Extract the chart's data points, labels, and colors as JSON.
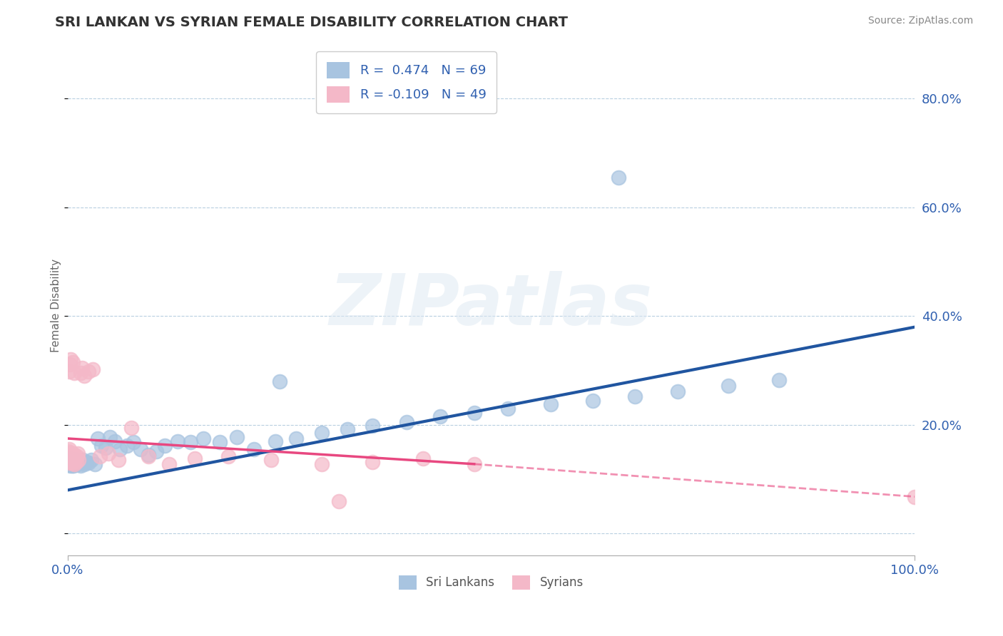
{
  "title": "SRI LANKAN VS SYRIAN FEMALE DISABILITY CORRELATION CHART",
  "source": "Source: ZipAtlas.com",
  "ylabel": "Female Disability",
  "xlim": [
    0.0,
    1.0
  ],
  "ylim": [
    -0.04,
    0.88
  ],
  "x_tick_left": "0.0%",
  "x_tick_right": "100.0%",
  "y_ticks": [
    0.0,
    0.2,
    0.4,
    0.6,
    0.8
  ],
  "y_tick_labels": [
    "",
    "20.0%",
    "40.0%",
    "60.0%",
    "80.0%"
  ],
  "sri_lankan_color": "#a8c4e0",
  "syrian_color": "#f4b8c8",
  "sri_lankan_line_color": "#2055a0",
  "syrian_line_color": "#e84880",
  "sri_lankan_R": 0.474,
  "sri_lankan_N": 69,
  "syrian_R": -0.109,
  "syrian_N": 49,
  "watermark_text": "ZIPatlas",
  "background_color": "#ffffff",
  "sri_lankans_x": [
    0.001,
    0.001,
    0.002,
    0.002,
    0.003,
    0.003,
    0.003,
    0.004,
    0.004,
    0.005,
    0.005,
    0.005,
    0.006,
    0.006,
    0.007,
    0.007,
    0.008,
    0.008,
    0.009,
    0.009,
    0.01,
    0.01,
    0.011,
    0.012,
    0.013,
    0.014,
    0.015,
    0.016,
    0.018,
    0.02,
    0.022,
    0.025,
    0.028,
    0.032,
    0.036,
    0.04,
    0.045,
    0.05,
    0.056,
    0.062,
    0.07,
    0.078,
    0.086,
    0.095,
    0.105,
    0.115,
    0.13,
    0.145,
    0.16,
    0.18,
    0.2,
    0.22,
    0.245,
    0.27,
    0.3,
    0.33,
    0.36,
    0.4,
    0.44,
    0.48,
    0.52,
    0.57,
    0.62,
    0.67,
    0.72,
    0.78,
    0.84,
    0.25,
    0.65
  ],
  "sri_lankans_y": [
    0.13,
    0.135,
    0.132,
    0.128,
    0.138,
    0.125,
    0.13,
    0.135,
    0.128,
    0.132,
    0.13,
    0.125,
    0.128,
    0.135,
    0.13,
    0.125,
    0.132,
    0.128,
    0.13,
    0.135,
    0.128,
    0.132,
    0.135,
    0.13,
    0.128,
    0.132,
    0.125,
    0.13,
    0.135,
    0.128,
    0.132,
    0.13,
    0.135,
    0.128,
    0.175,
    0.162,
    0.158,
    0.178,
    0.17,
    0.155,
    0.162,
    0.168,
    0.155,
    0.145,
    0.152,
    0.162,
    0.17,
    0.168,
    0.175,
    0.168,
    0.178,
    0.155,
    0.17,
    0.175,
    0.185,
    0.192,
    0.198,
    0.205,
    0.215,
    0.222,
    0.23,
    0.238,
    0.245,
    0.252,
    0.262,
    0.272,
    0.282,
    0.28,
    0.655
  ],
  "syrians_x": [
    0.001,
    0.001,
    0.001,
    0.002,
    0.002,
    0.002,
    0.003,
    0.003,
    0.004,
    0.004,
    0.005,
    0.005,
    0.005,
    0.006,
    0.006,
    0.007,
    0.007,
    0.008,
    0.008,
    0.009,
    0.01,
    0.011,
    0.012,
    0.013,
    0.015,
    0.017,
    0.02,
    0.025,
    0.03,
    0.038,
    0.048,
    0.06,
    0.075,
    0.095,
    0.12,
    0.15,
    0.19,
    0.24,
    0.3,
    0.36,
    0.42,
    0.48,
    0.002,
    0.003,
    0.004,
    0.006,
    0.008,
    0.32,
    1.0
  ],
  "syrians_y": [
    0.148,
    0.152,
    0.142,
    0.148,
    0.155,
    0.13,
    0.138,
    0.145,
    0.142,
    0.148,
    0.132,
    0.138,
    0.145,
    0.13,
    0.148,
    0.135,
    0.142,
    0.128,
    0.145,
    0.138,
    0.132,
    0.142,
    0.148,
    0.135,
    0.295,
    0.305,
    0.29,
    0.298,
    0.302,
    0.142,
    0.148,
    0.135,
    0.195,
    0.142,
    0.128,
    0.138,
    0.142,
    0.135,
    0.128,
    0.132,
    0.138,
    0.128,
    0.298,
    0.312,
    0.32,
    0.315,
    0.295,
    0.06,
    0.068
  ],
  "sri_lankan_line_x0": 0.0,
  "sri_lankan_line_y0": 0.08,
  "sri_lankan_line_x1": 1.0,
  "sri_lankan_line_y1": 0.38,
  "syrian_line_x0": 0.0,
  "syrian_line_y0": 0.175,
  "syrian_line_x1_solid": 0.48,
  "syrian_line_y1_solid": 0.128,
  "syrian_line_x1_dash": 1.0,
  "syrian_line_y1_dash": 0.068
}
